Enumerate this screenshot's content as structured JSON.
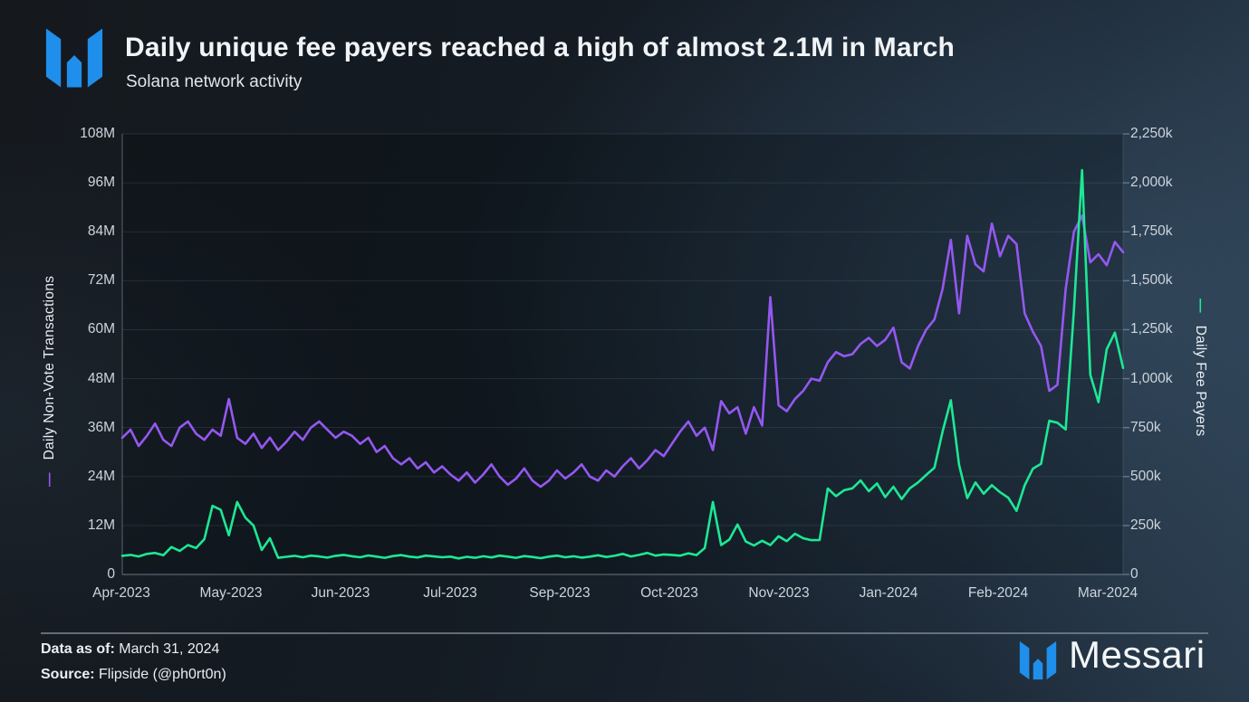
{
  "header": {
    "title": "Daily unique fee payers reached a high of almost 2.1M in March",
    "subtitle": "Solana network activity"
  },
  "brand": {
    "wordmark": "Messari",
    "logo_color": "#1f8feb"
  },
  "footer": {
    "data_as_of_label": "Data as of:",
    "data_as_of_value": " March 31, 2024",
    "source_label": "Source:",
    "source_value": " Flipside (@ph0rt0n)"
  },
  "chart_data": {
    "type": "line",
    "title": "Daily unique fee payers reached a high of almost 2.1M in March",
    "subtitle": "Solana network activity",
    "grid": true,
    "legend_position": "rotated axis labels with colored dashes",
    "x_tick_labels": [
      "Apr-2023",
      "May-2023",
      "Jun-2023",
      "Jul-2023",
      "Sep-2023",
      "Oct-2023",
      "Nov-2023",
      "Jan-2024",
      "Feb-2024",
      "Mar-2024"
    ],
    "x_range": [
      "Apr-2023",
      "Mar-2024"
    ],
    "left_axis": {
      "label": "Daily Non-Vote Transactions",
      "dash": "—",
      "color": "#9458f0",
      "unit": "M",
      "min": 0,
      "max": 108,
      "tick_step": 12,
      "ticks": [
        "0",
        "12M",
        "24M",
        "36M",
        "48M",
        "60M",
        "72M",
        "84M",
        "96M",
        "108M"
      ]
    },
    "right_axis": {
      "label": "Daily Fee Payers",
      "dash": "—",
      "color": "#1de894",
      "unit": "k",
      "min": 0,
      "max": 2250,
      "tick_step": 250,
      "ticks": [
        "0",
        "250k",
        "500k",
        "750k",
        "1,000k",
        "1,250k",
        "1,500k",
        "1,750k",
        "2,000k",
        "2,250k"
      ]
    },
    "series": [
      {
        "name": "Daily Non-Vote Transactions",
        "axis": "left",
        "color": "#9458f0",
        "unit": "millions",
        "values": [
          33.5,
          35.5,
          31.5,
          34,
          37,
          33,
          31.5,
          36,
          37.5,
          34.5,
          33,
          35.5,
          34,
          43,
          33.5,
          32,
          34.5,
          31,
          33.5,
          30.5,
          32.5,
          35,
          33,
          36,
          37.5,
          35.5,
          33.5,
          35,
          34,
          32,
          33.5,
          30,
          31.5,
          28.5,
          27,
          28.5,
          26,
          27.5,
          25,
          26.5,
          24.5,
          23,
          25,
          22.5,
          24.5,
          27,
          24,
          22,
          23.5,
          26,
          23,
          21.5,
          23,
          25.5,
          23.5,
          25,
          27,
          24,
          23,
          25.5,
          24,
          26.5,
          28.5,
          26,
          28,
          30.5,
          29,
          32,
          35,
          37.5,
          34,
          36,
          30.5,
          42.5,
          39.5,
          41,
          34.5,
          41,
          36.5,
          68,
          41.5,
          40,
          43,
          45,
          48,
          47.5,
          52,
          54.5,
          53.5,
          54,
          56.5,
          58,
          56,
          57.5,
          60.5,
          52,
          50.5,
          56,
          60,
          62.5,
          70,
          82,
          64,
          83,
          76,
          74.3,
          86,
          78,
          83,
          81,
          64,
          59.5,
          56,
          45,
          46.5,
          70,
          84,
          88,
          76.5,
          78.5,
          75.8,
          81.5,
          79
        ]
      },
      {
        "name": "Daily Fee Payers",
        "axis": "right",
        "color": "#1de894",
        "unit": "thousands",
        "values": [
          95,
          100,
          92,
          105,
          110,
          98,
          140,
          120,
          150,
          135,
          180,
          350,
          330,
          200,
          370,
          290,
          250,
          125,
          185,
          85,
          90,
          95,
          88,
          96,
          92,
          86,
          95,
          100,
          93,
          88,
          97,
          91,
          85,
          94,
          99,
          91,
          87,
          96,
          92,
          88,
          91,
          82,
          90,
          85,
          93,
          87,
          96,
          91,
          85,
          94,
          89,
          83,
          91,
          96,
          88,
          93,
          86,
          91,
          98,
          89,
          95,
          105,
          92,
          100,
          110,
          96,
          102,
          100,
          96,
          108,
          99,
          135,
          370,
          150,
          178,
          255,
          168,
          148,
          172,
          150,
          195,
          170,
          208,
          185,
          175,
          176,
          439,
          400,
          430,
          440,
          480,
          425,
          465,
          395,
          448,
          385,
          440,
          470,
          508,
          545,
          730,
          890,
          560,
          390,
          470,
          412,
          456,
          420,
          392,
          325,
          455,
          540,
          565,
          785,
          775,
          740,
          1350,
          2065,
          1020,
          880,
          1150,
          1235,
          1055
        ]
      }
    ]
  }
}
